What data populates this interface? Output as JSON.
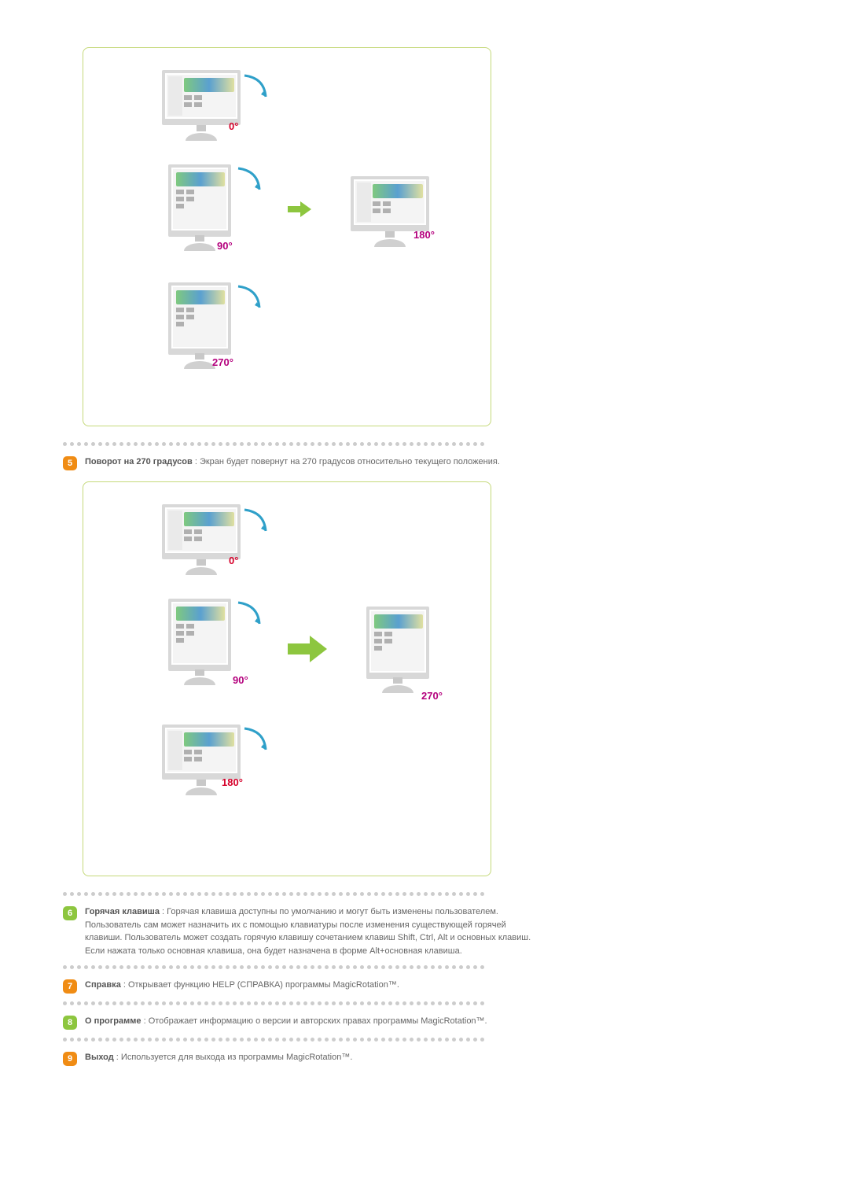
{
  "colors": {
    "border": "#c5d97a",
    "text": "#666666",
    "dot": "#cccccc",
    "arrow_green": "#8dc63f",
    "arrow_green_dark": "#6aa224",
    "rotation_arc": "#2fa0c9",
    "deg_red": "#d6002a",
    "deg_magenta": "#b4007d",
    "monitor_gray": "#d8d8d8"
  },
  "diagram1": {
    "labels": {
      "d0": "0°",
      "d90": "90°",
      "d180": "180°",
      "d270": "270°"
    }
  },
  "diagram2": {
    "labels": {
      "d0": "0°",
      "d90": "90°",
      "d180": "180°",
      "d270": "270°"
    }
  },
  "items": {
    "i5": {
      "num": "5",
      "badge_color": "#f08c14",
      "title": "Поворот на 270 градусов",
      "sep": " : ",
      "body": "Экран будет повернут на 270 градусов относительно текущего положения."
    },
    "i6": {
      "num": "6",
      "badge_color": "#8dc63f",
      "title": "Горячая клавиша",
      "sep": " : ",
      "body1": "Горячая клавиша доступны по умолчанию и могут быть изменены пользователем.",
      "body2": "Пользователь сам может назначить их с помощью клавиатуры после изменения существующей горячей клавиши. Пользователь может создать горячую клавишу сочетанием клавиш Shift, Ctrl, Alt и основных клавиш. Если нажата только основная клавиша, она будет назначена в форме Alt+основная клавиша."
    },
    "i7": {
      "num": "7",
      "badge_color": "#f08c14",
      "title": "Справка",
      "sep": " : ",
      "body": "Открывает функцию HELP (СПРАВКА) программы MagicRotation™."
    },
    "i8": {
      "num": "8",
      "badge_color": "#8dc63f",
      "title": "О программе",
      "sep": " : ",
      "body": "Отображает информацию о версии и авторских правах программы MagicRotation™."
    },
    "i9": {
      "num": "9",
      "badge_color": "#f08c14",
      "title": "Выход",
      "sep": " : ",
      "body": "Используется для выхода из программы MagicRotation™."
    }
  }
}
